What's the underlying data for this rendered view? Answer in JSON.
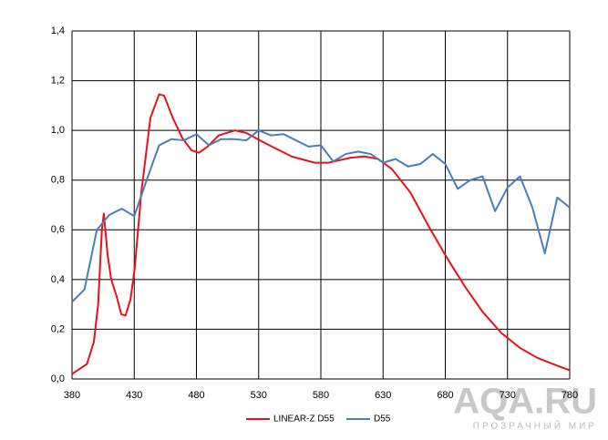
{
  "chart_data": {
    "type": "line",
    "xlim": [
      380,
      780
    ],
    "xticks": [
      380,
      430,
      480,
      530,
      580,
      630,
      680,
      730,
      780
    ],
    "ylim": [
      0,
      1.4
    ],
    "yticks": [
      {
        "value": 0,
        "label": "0,0"
      },
      {
        "value": 0.2,
        "label": "0,2"
      },
      {
        "value": 0.4,
        "label": "0,4"
      },
      {
        "value": 0.6,
        "label": "0,6"
      },
      {
        "value": 0.8,
        "label": "0,8"
      },
      {
        "value": 1.0,
        "label": "1,0"
      },
      {
        "value": 1.2,
        "label": "1,2"
      },
      {
        "value": 1.4,
        "label": "1,4"
      }
    ],
    "grid": true,
    "legend": "bottom",
    "series": [
      {
        "name": "LINEAR-Z D55",
        "color": "#e8111b",
        "x": [
          380,
          392,
          397.6,
          401,
          404,
          405.6,
          408.6,
          411.5,
          416,
          419.6,
          423,
          427,
          430.5,
          435.7,
          443,
          450,
          454,
          461,
          468.6,
          476,
          482,
          489,
          498,
          511,
          520,
          534.6,
          556.6,
          575,
          586,
          604,
          615,
          626,
          637,
          652,
          666,
          681,
          696,
          710,
          725,
          740,
          754,
          769,
          780
        ],
        "values": [
          0.02,
          0.06,
          0.15,
          0.3,
          0.6,
          0.665,
          0.5,
          0.4,
          0.33,
          0.26,
          0.255,
          0.32,
          0.45,
          0.75,
          1.05,
          1.145,
          1.14,
          1.05,
          0.97,
          0.92,
          0.91,
          0.935,
          0.98,
          1.0,
          0.99,
          0.95,
          0.895,
          0.87,
          0.87,
          0.89,
          0.895,
          0.885,
          0.845,
          0.75,
          0.62,
          0.49,
          0.37,
          0.27,
          0.185,
          0.125,
          0.085,
          0.055,
          0.035
        ]
      },
      {
        "name": "D55",
        "color": "#4a7ebb",
        "x": [
          380,
          390,
          400,
          410,
          420,
          430,
          440,
          450,
          460,
          470,
          480,
          490,
          500,
          510,
          520,
          530,
          540,
          550,
          560,
          570,
          580,
          590,
          600,
          610,
          620,
          630,
          640,
          650,
          660,
          670,
          680,
          690,
          700,
          710,
          720,
          730,
          740,
          750,
          760,
          770,
          780
        ],
        "values": [
          0.31,
          0.36,
          0.6,
          0.66,
          0.685,
          0.655,
          0.8,
          0.94,
          0.965,
          0.96,
          0.985,
          0.94,
          0.965,
          0.965,
          0.96,
          1.0,
          0.98,
          0.985,
          0.96,
          0.935,
          0.94,
          0.875,
          0.905,
          0.915,
          0.905,
          0.87,
          0.885,
          0.855,
          0.865,
          0.905,
          0.865,
          0.765,
          0.8,
          0.815,
          0.675,
          0.77,
          0.815,
          0.69,
          0.505,
          0.73,
          0.69
        ]
      }
    ],
    "annotations": [
      "AQA.RU",
      "ПРОЗРАЧНЫЙ МИР"
    ]
  }
}
